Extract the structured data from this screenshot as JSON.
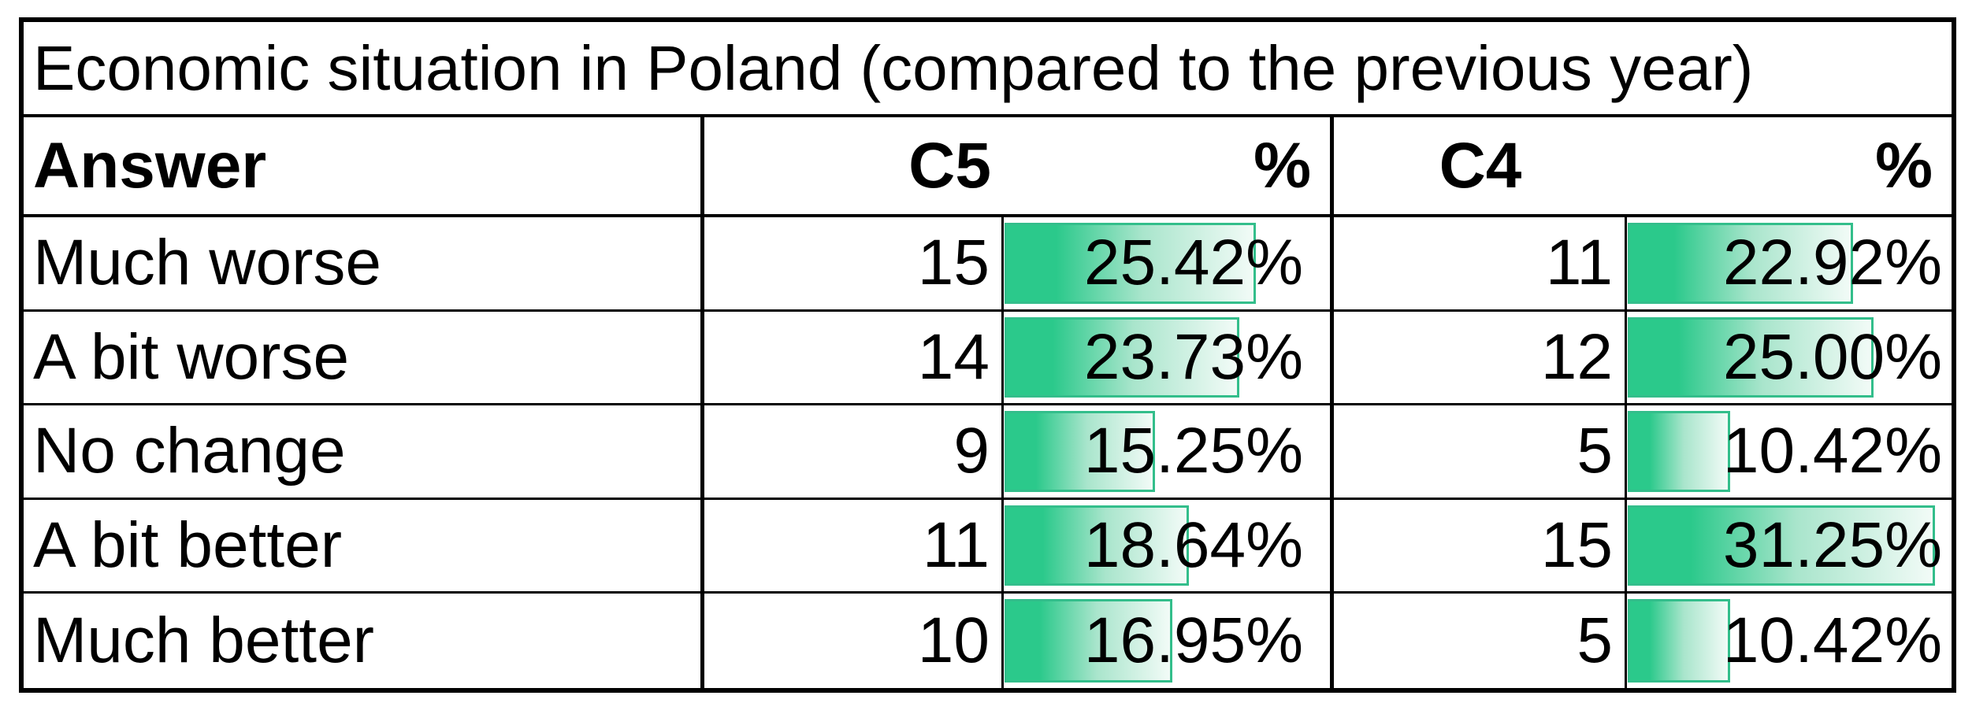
{
  "title": "Economic situation in Poland (compared to the previous year)",
  "header": {
    "answer": "Answer",
    "c5": "C5",
    "c5_pct": "%",
    "c4": "C4",
    "c4_pct": "%"
  },
  "databar": {
    "max_percent": 33,
    "fill_solid": "#2bc98b",
    "fill_mid": "#a9e5cc",
    "fill_light": "#f2fbf7",
    "border_color": "#33be8b"
  },
  "rows": [
    {
      "answer": "Much worse",
      "c5_count": "15",
      "c5_pct": "25.42%",
      "c5_value": 25.42,
      "c4_count": "11",
      "c4_pct": "22.92%",
      "c4_value": 22.92
    },
    {
      "answer": "A bit worse",
      "c5_count": "14",
      "c5_pct": "23.73%",
      "c5_value": 23.73,
      "c4_count": "12",
      "c4_pct": "25.00%",
      "c4_value": 25.0
    },
    {
      "answer": "No change",
      "c5_count": "9",
      "c5_pct": "15.25%",
      "c5_value": 15.25,
      "c4_count": "5",
      "c4_pct": "10.42%",
      "c4_value": 10.42
    },
    {
      "answer": "A bit better",
      "c5_count": "11",
      "c5_pct": "18.64%",
      "c5_value": 18.64,
      "c4_count": "15",
      "c4_pct": "31.25%",
      "c4_value": 31.25
    },
    {
      "answer": "Much better",
      "c5_count": "10",
      "c5_pct": "16.95%",
      "c5_value": 16.95,
      "c4_count": "5",
      "c4_pct": "10.42%",
      "c4_value": 10.42
    }
  ],
  "chart_data": {
    "type": "table",
    "title": "Economic situation in Poland (compared to the previous year)",
    "columns": [
      "Answer",
      "C5",
      "%",
      "C4",
      "%"
    ],
    "categories": [
      "Much worse",
      "A bit worse",
      "No change",
      "A bit better",
      "Much better"
    ],
    "series": [
      {
        "name": "C5",
        "values": [
          15,
          14,
          9,
          11,
          10
        ]
      },
      {
        "name": "C5 %",
        "values": [
          25.42,
          23.73,
          15.25,
          18.64,
          16.95
        ]
      },
      {
        "name": "C4",
        "values": [
          11,
          12,
          5,
          15,
          5
        ]
      },
      {
        "name": "C4 %",
        "values": [
          22.92,
          25.0,
          10.42,
          31.25,
          10.42
        ]
      }
    ],
    "annotations": "Percent cells contain green gradient data bars scaled from 0 to ~33%",
    "legend_position": "none",
    "grid": "full cell borders"
  }
}
